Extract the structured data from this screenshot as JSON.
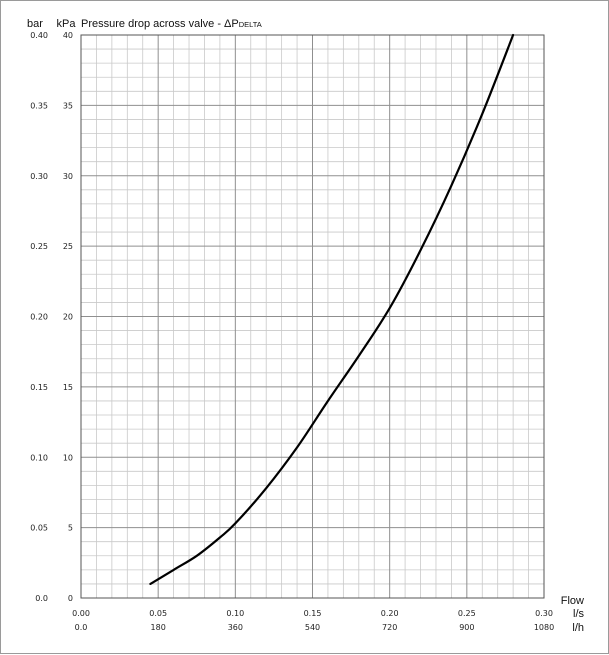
{
  "chart_data": {
    "type": "line",
    "title": "Pressure drop across valve - ΔP",
    "title_subscript": "DELTA",
    "y_units": {
      "bar": "bar",
      "kpa": "kPa"
    },
    "x_label": "Flow",
    "x_units": {
      "ls": "l/s",
      "lh": "l/h"
    },
    "xlim": [
      0,
      0.3
    ],
    "ylim": [
      0,
      40
    ],
    "grid": true,
    "y_ticks_kpa": [
      "0",
      "5",
      "10",
      "15",
      "20",
      "25",
      "30",
      "35",
      "40"
    ],
    "y_ticks_bar": [
      "0.0",
      "0.05",
      "0.10",
      "0.15",
      "0.20",
      "0.25",
      "0.30",
      "0.35",
      "0.40"
    ],
    "x_ticks_ls": [
      "0.00",
      "0.05",
      "0.10",
      "0.15",
      "0.20",
      "0.25",
      "0.30"
    ],
    "x_ticks_lh": [
      "0.0",
      "180",
      "360",
      "540",
      "720",
      "900",
      "1080"
    ],
    "series": [
      {
        "color": "#000000",
        "x": [
          0.045,
          0.06,
          0.075,
          0.09,
          0.1,
          0.12,
          0.14,
          0.16,
          0.18,
          0.2,
          0.22,
          0.24,
          0.26,
          0.28
        ],
        "y": [
          1.0,
          2.0,
          3.0,
          4.3,
          5.3,
          7.8,
          10.7,
          14.0,
          17.2,
          20.6,
          24.7,
          29.3,
          34.4,
          40.0
        ]
      }
    ]
  }
}
